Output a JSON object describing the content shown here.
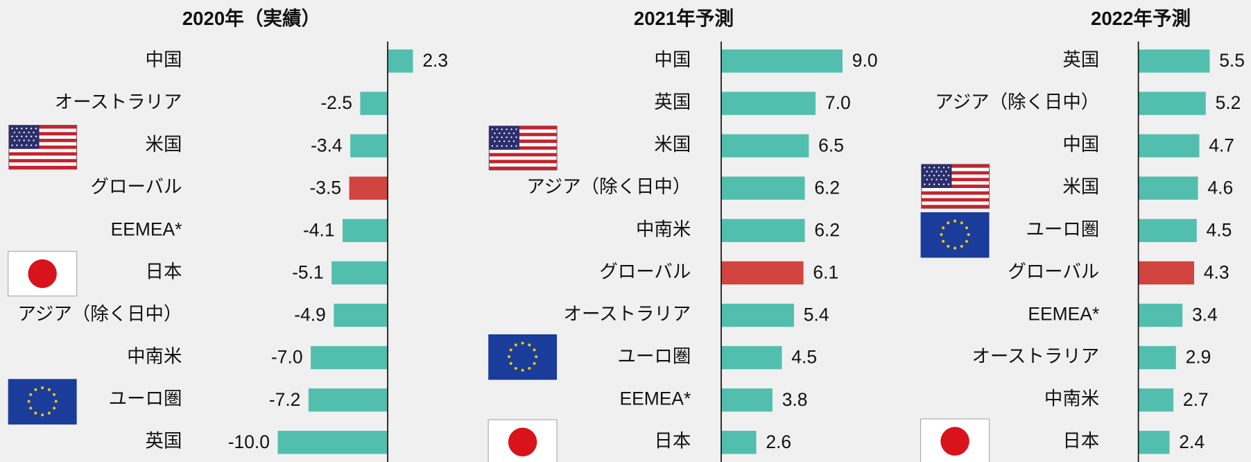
{
  "chart_data": [
    {
      "type": "bar",
      "orientation": "horizontal",
      "title": "2020年（実績）",
      "categories": [
        "中国",
        "オーストラリア",
        "米国",
        "グローバル",
        "EEMEA*",
        "日本",
        "アジア（除く日中）",
        "中南米",
        "ユーロ圏",
        "英国"
      ],
      "values": [
        2.3,
        -2.5,
        -3.4,
        -3.5,
        -4.1,
        -5.1,
        -4.9,
        -7.0,
        -7.2,
        -10.0
      ],
      "value_labels": [
        "2.3",
        "-2.5",
        "-3.4",
        "-3.5",
        "-4.1",
        "-5.1",
        "-4.9",
        "-7.0",
        "-7.2",
        "-10.0"
      ],
      "colors": [
        "#52bfae",
        "#52bfae",
        "#52bfae",
        "#d24440",
        "#52bfae",
        "#52bfae",
        "#52bfae",
        "#52bfae",
        "#52bfae",
        "#52bfae"
      ],
      "xlim": [
        -10,
        4
      ]
    },
    {
      "type": "bar",
      "orientation": "horizontal",
      "title": "2021年予測",
      "categories": [
        "中国",
        "英国",
        "米国",
        "アジア（除く日中）",
        "中南米",
        "グローバル",
        "オーストラリア",
        "ユーロ圏",
        "EEMEA*",
        "日本"
      ],
      "values": [
        9.0,
        7.0,
        6.5,
        6.2,
        6.2,
        6.1,
        5.4,
        4.5,
        3.8,
        2.6
      ],
      "value_labels": [
        "9.0",
        "7.0",
        "6.5",
        "6.2",
        "6.2",
        "6.1",
        "5.4",
        "4.5",
        "3.8",
        "2.6"
      ],
      "colors": [
        "#52bfae",
        "#52bfae",
        "#52bfae",
        "#52bfae",
        "#52bfae",
        "#d24440",
        "#52bfae",
        "#52bfae",
        "#52bfae",
        "#52bfae"
      ],
      "xlim": [
        0,
        10
      ]
    },
    {
      "type": "bar",
      "orientation": "horizontal",
      "title": "2022年予測",
      "categories": [
        "英国",
        "アジア（除く日中）",
        "中国",
        "米国",
        "ユーロ圏",
        "グローバル",
        "EEMEA*",
        "オーストラリア",
        "中南米",
        "日本"
      ],
      "values": [
        5.5,
        5.2,
        4.7,
        4.6,
        4.5,
        4.3,
        3.4,
        2.9,
        2.7,
        2.4
      ],
      "value_labels": [
        "5.5",
        "5.2",
        "4.7",
        "4.6",
        "4.5",
        "4.3",
        "3.4",
        "2.9",
        "2.7",
        "2.4"
      ],
      "colors": [
        "#52bfae",
        "#52bfae",
        "#52bfae",
        "#52bfae",
        "#52bfae",
        "#d24440",
        "#52bfae",
        "#52bfae",
        "#52bfae",
        "#52bfae"
      ],
      "xlim": [
        0,
        8
      ]
    }
  ]
}
